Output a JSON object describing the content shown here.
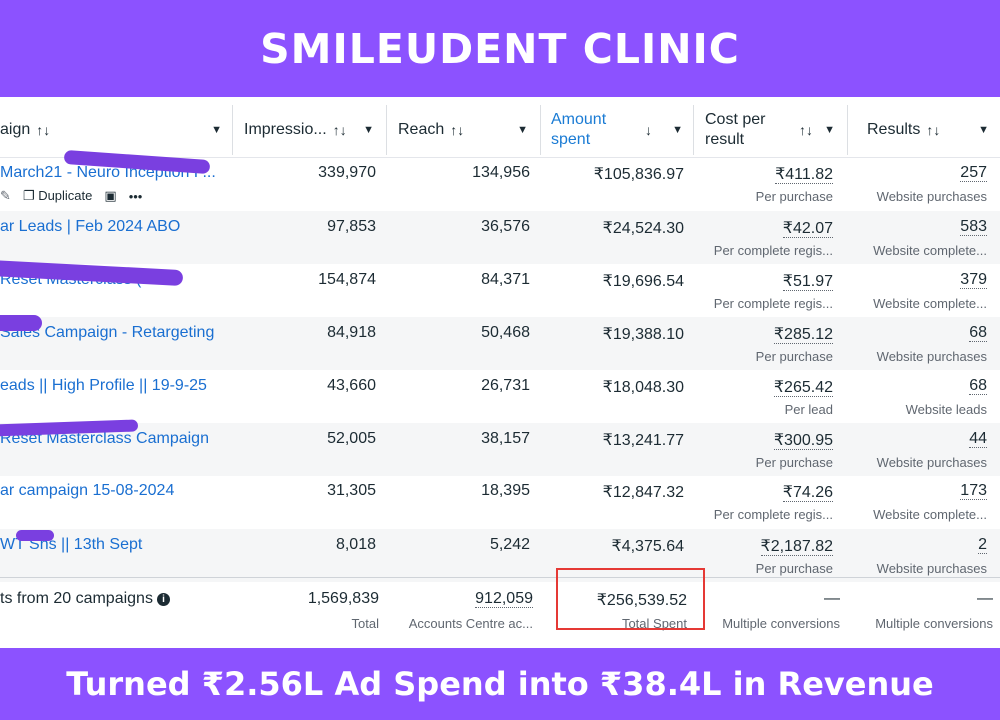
{
  "banner": {
    "title": "SMILEUDENT CLINIC",
    "caption": "Turned ₹2.56L Ad Spend into ₹38.4L in Revenue",
    "color": "#8c52ff"
  },
  "columns": [
    {
      "label": "aign",
      "sort": "↑↓"
    },
    {
      "label": "Impressio...",
      "sort": "↑↓"
    },
    {
      "label": "Reach",
      "sort": "↑↓"
    },
    {
      "label": "Amount spent",
      "sort": "↓"
    },
    {
      "label": "Cost per result",
      "sort": "↑↓"
    },
    {
      "label": "Results",
      "sort": "↑↓"
    }
  ],
  "row_actions": {
    "duplicate": "Duplicate",
    "more": "•••"
  },
  "rows": [
    {
      "name": "March21 - Neuro Inception P...",
      "impressions": "339,970",
      "reach": "134,956",
      "spent": "₹105,836.97",
      "cost": "₹411.82",
      "cost_sub": "Per purchase",
      "results": "257",
      "results_sub": "Website purchases"
    },
    {
      "name": "ar Leads | Feb 2024 ABO",
      "impressions": "97,853",
      "reach": "36,576",
      "spent": "₹24,524.30",
      "cost": "₹42.07",
      "cost_sub": "Per complete regis...",
      "results": "583",
      "results_sub": "Website complete..."
    },
    {
      "name": "Reset Masterclass (P...",
      "impressions": "154,874",
      "reach": "84,371",
      "spent": "₹19,696.54",
      "cost": "₹51.97",
      "cost_sub": "Per complete regis...",
      "results": "379",
      "results_sub": "Website complete..."
    },
    {
      "name": "Sales Campaign - Retargeting",
      "impressions": "84,918",
      "reach": "50,468",
      "spent": "₹19,388.10",
      "cost": "₹285.12",
      "cost_sub": "Per purchase",
      "results": "68",
      "results_sub": "Website purchases"
    },
    {
      "name": "eads || High Profile || 19-9-25",
      "impressions": "43,660",
      "reach": "26,731",
      "spent": "₹18,048.30",
      "cost": "₹265.42",
      "cost_sub": "Per lead",
      "results": "68",
      "results_sub": "Website leads"
    },
    {
      "name": "Reset Masterclass Campaign",
      "impressions": "52,005",
      "reach": "38,157",
      "spent": "₹13,241.77",
      "cost": "₹300.95",
      "cost_sub": "Per purchase",
      "results": "44",
      "results_sub": "Website purchases"
    },
    {
      "name": "ar campaign 15-08-2024",
      "impressions": "31,305",
      "reach": "18,395",
      "spent": "₹12,847.32",
      "cost": "₹74.26",
      "cost_sub": "Per complete regis...",
      "results": "173",
      "results_sub": "Website complete..."
    },
    {
      "name": "WT Sns || 13th Sept",
      "impressions": "8,018",
      "reach": "5,242",
      "spent": "₹4,375.64",
      "cost": "₹2,187.82",
      "cost_sub": "Per purchase",
      "results": "2",
      "results_sub": "Website purchases"
    }
  ],
  "totals": {
    "label": "ts from 20 campaigns",
    "impressions": "1,569,839",
    "impressions_sub": "Total",
    "reach": "912,059",
    "reach_sub": "Accounts Centre ac...",
    "spent": "₹256,539.52",
    "spent_sub": "Total Spent",
    "cost": "—",
    "cost_sub": "Multiple conversions",
    "results": "—",
    "results_sub": "Multiple conversions"
  }
}
